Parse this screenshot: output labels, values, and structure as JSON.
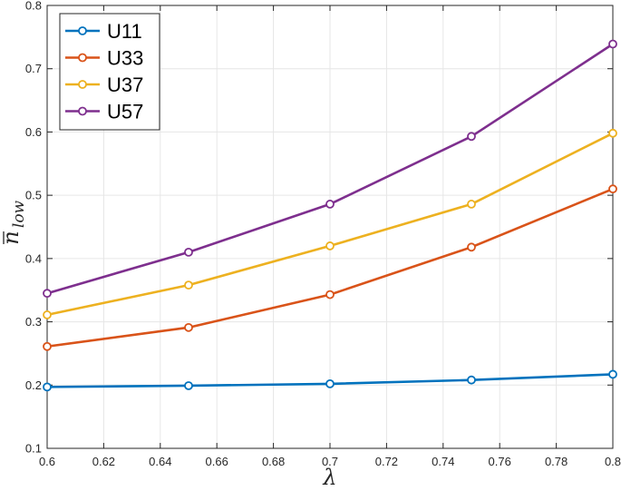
{
  "chart_data": {
    "type": "line",
    "title": "",
    "xlabel": "λ",
    "ylabel": "n̄_low",
    "xlim": [
      0.6,
      0.8
    ],
    "ylim": [
      0.1,
      0.8
    ],
    "xticks": [
      0.6,
      0.62,
      0.64,
      0.66,
      0.68,
      0.7,
      0.72,
      0.74,
      0.76,
      0.78,
      0.8
    ],
    "xtick_labels": [
      "0.6",
      "0.62",
      "0.64",
      "0.66",
      "0.68",
      "0.7",
      "0.72",
      "0.74",
      "0.76",
      "0.78",
      "0.8"
    ],
    "yticks": [
      0.1,
      0.2,
      0.3,
      0.4,
      0.5,
      0.6,
      0.7,
      0.8
    ],
    "ytick_labels": [
      "0.1",
      "0.2",
      "0.3",
      "0.4",
      "0.5",
      "0.6",
      "0.7",
      "0.8"
    ],
    "grid": true,
    "legend_position": "top-left",
    "x": [
      0.6,
      0.65,
      0.7,
      0.75,
      0.8
    ],
    "series": [
      {
        "name": "U11",
        "color": "#0072BD",
        "marker": "o",
        "values": [
          0.197,
          0.199,
          0.202,
          0.208,
          0.217
        ]
      },
      {
        "name": "U33",
        "color": "#D95319",
        "marker": "o",
        "values": [
          0.261,
          0.291,
          0.343,
          0.418,
          0.51
        ]
      },
      {
        "name": "U37",
        "color": "#EDB120",
        "marker": "o",
        "values": [
          0.311,
          0.358,
          0.42,
          0.486,
          0.598
        ]
      },
      {
        "name": "U57",
        "color": "#7E2F8E",
        "marker": "o",
        "values": [
          0.345,
          0.41,
          0.486,
          0.593,
          0.739
        ]
      }
    ]
  }
}
